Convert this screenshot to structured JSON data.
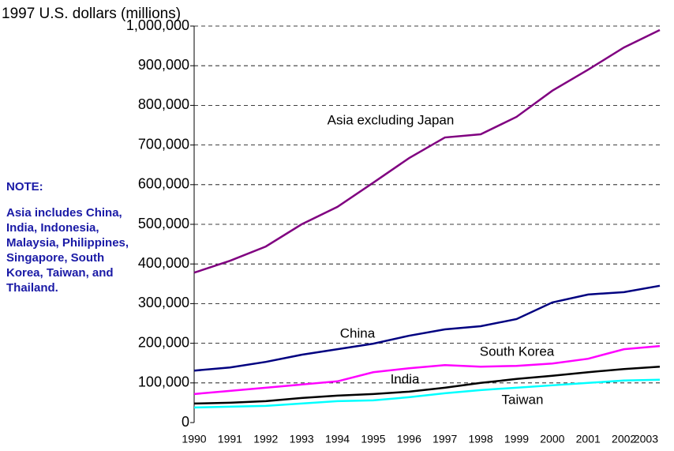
{
  "chart_data": {
    "type": "line",
    "y_axis_label": "1997 U.S. dollars (millions)",
    "note_title": "NOTE:",
    "note_text": "Asia includes China, India, Indonesia, Malaysia, Philippines, Singapore, South Korea, Taiwan, and Thailand.",
    "categories": [
      "1990",
      "1991",
      "1992",
      "1993",
      "1994",
      "1995",
      "1996",
      "1997",
      "1998",
      "1999",
      "2000",
      "2001",
      "2002",
      "2003"
    ],
    "series": [
      {
        "name": "Asia excluding Japan",
        "color": "#800080",
        "values": [
          378000,
          408000,
          444000,
          500000,
          544000,
          605000,
          667000,
          719000,
          727000,
          771000,
          837000,
          890000,
          946000,
          990000
        ]
      },
      {
        "name": "China",
        "color": "#000080",
        "values": [
          131000,
          139000,
          153000,
          171000,
          185000,
          199000,
          219000,
          235000,
          243000,
          261000,
          303000,
          323000,
          329000,
          345000
        ]
      },
      {
        "name": "South Korea",
        "color": "#ff00ff",
        "values": [
          72000,
          80000,
          88000,
          96000,
          104000,
          127000,
          137000,
          145000,
          141000,
          143000,
          149000,
          161000,
          185000,
          193000
        ]
      },
      {
        "name": "India",
        "color": "#000000",
        "values": [
          48000,
          50000,
          54000,
          62000,
          68000,
          72000,
          78000,
          88000,
          100000,
          110000,
          118000,
          127000,
          135000,
          141000
        ]
      },
      {
        "name": "Taiwan",
        "color": "#00ffff",
        "values": [
          38000,
          40000,
          42000,
          48000,
          54000,
          56000,
          64000,
          74000,
          82000,
          88000,
          94000,
          100000,
          106000,
          108000
        ]
      }
    ],
    "ylim": [
      0,
      1000000
    ],
    "yticks": [
      0,
      {
        "value": 100000,
        "label": "100,000"
      },
      {
        "value": 200000,
        "label": "200,000"
      },
      {
        "value": 300000,
        "label": "300,000"
      },
      {
        "value": 400000,
        "label": "400,000"
      },
      {
        "value": 500000,
        "label": "500,000"
      },
      {
        "value": 600000,
        "label": "600,000"
      },
      {
        "value": 700000,
        "label": "700,000"
      },
      {
        "value": 800000,
        "label": "800,000"
      },
      {
        "value": 900000,
        "label": "900,000"
      },
      {
        "value": 1000000,
        "label": "1,000,000"
      }
    ],
    "grid": true
  }
}
